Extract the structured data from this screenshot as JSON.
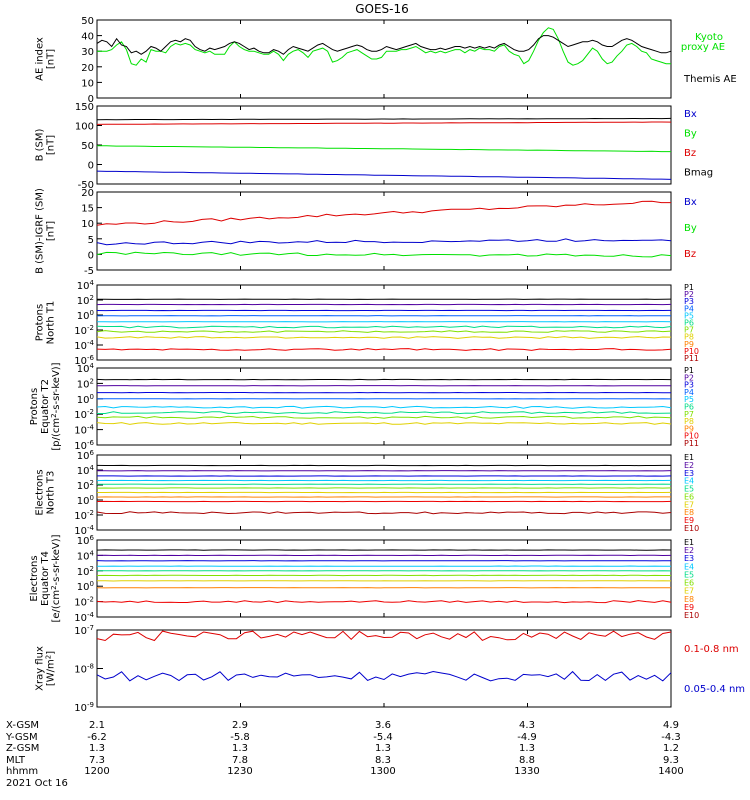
{
  "title": "GOES-16",
  "chart_data": [
    {
      "type": "line",
      "panel": "ae",
      "ylabel": [
        "AE index",
        "[nT]"
      ],
      "ylim": [
        0,
        50
      ],
      "yticks": [
        "0",
        "10",
        "20",
        "30",
        "40",
        "50"
      ],
      "yscale": "linear",
      "x": [
        0,
        5,
        10,
        15,
        20,
        25,
        30,
        35,
        40,
        45,
        50,
        55,
        60,
        65,
        70,
        75,
        80,
        85,
        90,
        95,
        100,
        105,
        110,
        115,
        120,
        125,
        130,
        135,
        140,
        145,
        150,
        155,
        160,
        165,
        170,
        175,
        180,
        185,
        190,
        195,
        200,
        205,
        210,
        215,
        220,
        225,
        230,
        235,
        240,
        245,
        250,
        255,
        260,
        265,
        270,
        275,
        280,
        285,
        290,
        295,
        300,
        305,
        310,
        315,
        320,
        325,
        330,
        335,
        340,
        345,
        350,
        355,
        360,
        365,
        370,
        375,
        380,
        385,
        390,
        395,
        400,
        405,
        410,
        415,
        420,
        425,
        430,
        435,
        440,
        445,
        450,
        455,
        460,
        465,
        470,
        475,
        480,
        485,
        490,
        495,
        500,
        505,
        510,
        515,
        520,
        525,
        530,
        535,
        540,
        545,
        550,
        555,
        560,
        565,
        570,
        575,
        580,
        585
      ],
      "series": [
        {
          "name": "Kyoto proxy AE",
          "color": "#00e000",
          "values": [
            30,
            30,
            30,
            31,
            34,
            36,
            31,
            22,
            21,
            25,
            23,
            31,
            30,
            30,
            29,
            33,
            35,
            34,
            35,
            34,
            31,
            30,
            29,
            30,
            28,
            28,
            28,
            33,
            36,
            33,
            31,
            30,
            30,
            29,
            28,
            28,
            30,
            28,
            24,
            28,
            30,
            31,
            29,
            26,
            30,
            31,
            32,
            30,
            23,
            24,
            26,
            29,
            30,
            31,
            29,
            27,
            25,
            25,
            26,
            30,
            30,
            30,
            31,
            31,
            32,
            33,
            31,
            29,
            30,
            29,
            30,
            29,
            30,
            31,
            31,
            29,
            31,
            30,
            32,
            31,
            31,
            30,
            33,
            34,
            30,
            28,
            27,
            22,
            24,
            30,
            37,
            42,
            45,
            44,
            38,
            30,
            23,
            21,
            22,
            24,
            28,
            32,
            30,
            25,
            22,
            23,
            27,
            30,
            34,
            35,
            33,
            30,
            29,
            25,
            24,
            23,
            22,
            22
          ]
        },
        {
          "name": "Themis AE",
          "color": "#000000",
          "values": [
            35,
            37,
            36,
            33,
            38,
            34,
            33,
            29,
            30,
            28,
            30,
            33,
            32,
            30,
            33,
            36,
            37,
            36,
            38,
            37,
            33,
            31,
            30,
            32,
            31,
            32,
            33,
            35,
            36,
            35,
            33,
            31,
            32,
            30,
            29,
            29,
            31,
            30,
            28,
            31,
            33,
            32,
            31,
            30,
            32,
            34,
            35,
            33,
            31,
            30,
            31,
            32,
            33,
            34,
            33,
            31,
            30,
            30,
            31,
            33,
            32,
            31,
            32,
            33,
            34,
            35,
            33,
            32,
            31,
            31,
            32,
            31,
            32,
            33,
            33,
            32,
            33,
            32,
            33,
            32,
            33,
            32,
            34,
            35,
            33,
            31,
            30,
            30,
            31,
            34,
            38,
            40,
            40,
            39,
            37,
            35,
            33,
            34,
            35,
            36,
            36,
            37,
            36,
            34,
            33,
            33,
            35,
            37,
            38,
            37,
            35,
            33,
            32,
            31,
            30,
            29,
            29,
            30
          ]
        }
      ],
      "legend": [
        "Kyoto proxy AE",
        "Themis AE"
      ]
    },
    {
      "type": "line",
      "panel": "b",
      "ylabel": [
        "B (SM)",
        "[nT]"
      ],
      "ylim": [
        -50,
        150
      ],
      "yticks": [
        "-50",
        "0",
        "50",
        "100",
        "150"
      ],
      "yscale": "linear",
      "series": [
        {
          "name": "Bx",
          "color": "#0000cc",
          "start": -17,
          "end": -38
        },
        {
          "name": "By",
          "color": "#00e000",
          "start": 48,
          "end": 33
        },
        {
          "name": "Bz",
          "color": "#dd0000",
          "start": 103,
          "end": 109
        },
        {
          "name": "Bmag",
          "color": "#000000",
          "start": 115,
          "end": 118
        }
      ],
      "legend": [
        "Bx",
        "By",
        "Bz",
        "Bmag"
      ]
    },
    {
      "type": "line",
      "panel": "bigrf",
      "ylabel": [
        "B (SM)-IGRF (SM)",
        "[nT]"
      ],
      "ylim": [
        -5,
        20
      ],
      "yticks": [
        "-5",
        "0",
        "5",
        "10",
        "15",
        "20"
      ],
      "yscale": "linear",
      "series": [
        {
          "name": "Bx",
          "color": "#0000cc",
          "start": 3.5,
          "end": 4.8
        },
        {
          "name": "By",
          "color": "#00e000",
          "start": 0.3,
          "end": -0.4
        },
        {
          "name": "Bz",
          "color": "#dd0000",
          "start": 9.5,
          "end": 17
        }
      ],
      "legend": [
        "Bx",
        "By",
        "Bz"
      ]
    },
    {
      "type": "line",
      "panel": "pnorth",
      "ylabel": [
        "Protons",
        "North T1"
      ],
      "ylim_exp": [
        -6,
        4
      ],
      "yticks": [
        "10^-6",
        "10^-4",
        "10^-2",
        "10^0",
        "10^2",
        "10^4"
      ],
      "yscale": "log",
      "series": [
        {
          "name": "P1",
          "color": "#000000",
          "level": 2.1
        },
        {
          "name": "P2",
          "color": "#5000a0",
          "level": 1.4
        },
        {
          "name": "P3",
          "color": "#0000dd",
          "level": 0.6
        },
        {
          "name": "P4",
          "color": "#0060ff",
          "level": -0.1
        },
        {
          "name": "P5",
          "color": "#00c8ff",
          "level": -0.9
        },
        {
          "name": "P6",
          "color": "#00dd88",
          "level": -1.6
        },
        {
          "name": "P7",
          "color": "#80e000",
          "level": -2.2
        },
        {
          "name": "P8",
          "color": "#e0d000",
          "level": -3.0
        },
        {
          "name": "P9",
          "color": "#ff8000",
          "level": -99
        },
        {
          "name": "P10",
          "color": "#ee0000",
          "level": -4.6
        },
        {
          "name": "P11",
          "color": "#aa0000",
          "level": -99
        }
      ],
      "legend": [
        "P1",
        "P2",
        "P3",
        "P4",
        "P5",
        "P6",
        "P7",
        "P8",
        "P9",
        "P10",
        "P11"
      ]
    },
    {
      "type": "line",
      "panel": "pequator",
      "ylabel": [
        "Protons",
        "Equator T2",
        "[p/(cm^2-s-sr-keV)]"
      ],
      "ylim_exp": [
        -6,
        4
      ],
      "yticks": [
        "10^-6",
        "10^-4",
        "10^-2",
        "10^0",
        "10^2",
        "10^4"
      ],
      "yscale": "log",
      "series": [
        {
          "name": "P1",
          "color": "#000000",
          "level": 2.5
        },
        {
          "name": "P2",
          "color": "#5000a0",
          "level": 1.7
        },
        {
          "name": "P3",
          "color": "#0000dd",
          "level": 0.8
        },
        {
          "name": "P4",
          "color": "#0060ff",
          "level": 0.0
        },
        {
          "name": "P5",
          "color": "#00c8ff",
          "level": -1.1
        },
        {
          "name": "P6",
          "color": "#00dd88",
          "level": -1.8
        },
        {
          "name": "P7",
          "color": "#80e000",
          "level": -2.4
        },
        {
          "name": "P8",
          "color": "#e0d000",
          "level": -3.2
        },
        {
          "name": "P9",
          "color": "#ff8000",
          "level": -99
        },
        {
          "name": "P10",
          "color": "#ee0000",
          "level": -99
        },
        {
          "name": "P11",
          "color": "#aa0000",
          "level": -99
        }
      ],
      "legend": [
        "P1",
        "P2",
        "P3",
        "P4",
        "P5",
        "P6",
        "P7",
        "P8",
        "P9",
        "P10",
        "P11"
      ]
    },
    {
      "type": "line",
      "panel": "enorth",
      "ylabel": [
        "Electrons",
        "North T3"
      ],
      "ylim_exp": [
        -4,
        6
      ],
      "yticks": [
        "10^-4",
        "10^-2",
        "10^0",
        "10^2",
        "10^4",
        "10^6"
      ],
      "yscale": "log",
      "series": [
        {
          "name": "E1",
          "color": "#000000",
          "level": 4.6
        },
        {
          "name": "E2",
          "color": "#5000a0",
          "level": 3.9
        },
        {
          "name": "E3",
          "color": "#0000dd",
          "level": 3.2
        },
        {
          "name": "E4",
          "color": "#00c8ff",
          "level": 2.6
        },
        {
          "name": "E5",
          "color": "#00dd88",
          "level": 2.1
        },
        {
          "name": "E6",
          "color": "#80e000",
          "level": 1.6
        },
        {
          "name": "E7",
          "color": "#e0d000",
          "level": 1.0
        },
        {
          "name": "E8",
          "color": "#ff8000",
          "level": 0.4
        },
        {
          "name": "E9",
          "color": "#ee0000",
          "level": -0.2
        },
        {
          "name": "E10",
          "color": "#aa0000",
          "level": -1.7
        }
      ],
      "legend": [
        "E1",
        "E2",
        "E3",
        "E4",
        "E5",
        "E6",
        "E7",
        "E8",
        "E9",
        "E10"
      ]
    },
    {
      "type": "line",
      "panel": "eequator",
      "ylabel": [
        "Electrons",
        "Equator T4",
        "[e/(cm^2-s-sr-keV)]"
      ],
      "ylim_exp": [
        -4,
        6
      ],
      "yticks": [
        "10^-4",
        "10^-2",
        "10^0",
        "10^2",
        "10^4",
        "10^6"
      ],
      "yscale": "log",
      "series": [
        {
          "name": "E1",
          "color": "#000000",
          "level": 4.7
        },
        {
          "name": "E2",
          "color": "#5000a0",
          "level": 4.0
        },
        {
          "name": "E3",
          "color": "#0000dd",
          "level": 3.3
        },
        {
          "name": "E4",
          "color": "#00c8ff",
          "level": 2.6
        },
        {
          "name": "E5",
          "color": "#00dd88",
          "level": 2.0
        },
        {
          "name": "E6",
          "color": "#80e000",
          "level": 1.4
        },
        {
          "name": "E7",
          "color": "#e0d000",
          "level": 0.7
        },
        {
          "name": "E8",
          "color": "#ff8000",
          "level": -0.2
        },
        {
          "name": "E9",
          "color": "#ee0000",
          "level": -2.0
        },
        {
          "name": "E10",
          "color": "#aa0000",
          "level": -99
        }
      ],
      "legend": [
        "E1",
        "E2",
        "E3",
        "E4",
        "E5",
        "E6",
        "E7",
        "E8",
        "E9",
        "E10"
      ]
    },
    {
      "type": "line",
      "panel": "xray",
      "ylabel": [
        "Xray flux",
        "[W/m^2]"
      ],
      "ylim_exp": [
        -9,
        -7
      ],
      "yticks": [
        "10^-9",
        "10^-8",
        "10^-7"
      ],
      "yscale": "log",
      "series": [
        {
          "name": "0.1-0.8 nm",
          "color": "#dd0000",
          "level": -7.15
        },
        {
          "name": "0.05-0.4 nm",
          "color": "#0000cc",
          "level": -8.2
        }
      ],
      "legend": [
        "0.1-0.8 nm",
        "0.05-0.4 nm"
      ]
    }
  ],
  "footer": {
    "row_labels": [
      "X-GSM",
      "Y-GSM",
      "Z-GSM",
      "MLT",
      "hhmm",
      "2021 Oct 16"
    ],
    "columns": [
      [
        "2.1",
        "-6.2",
        "1.3",
        "7.3",
        "1200"
      ],
      [
        "2.9",
        "-5.8",
        "1.3",
        "7.8",
        "1230"
      ],
      [
        "3.6",
        "-5.4",
        "1.3",
        "8.3",
        "1300"
      ],
      [
        "4.3",
        "-4.9",
        "1.3",
        "8.8",
        "1330"
      ],
      [
        "4.9",
        "-4.3",
        "1.2",
        "9.3",
        "1400"
      ]
    ]
  }
}
